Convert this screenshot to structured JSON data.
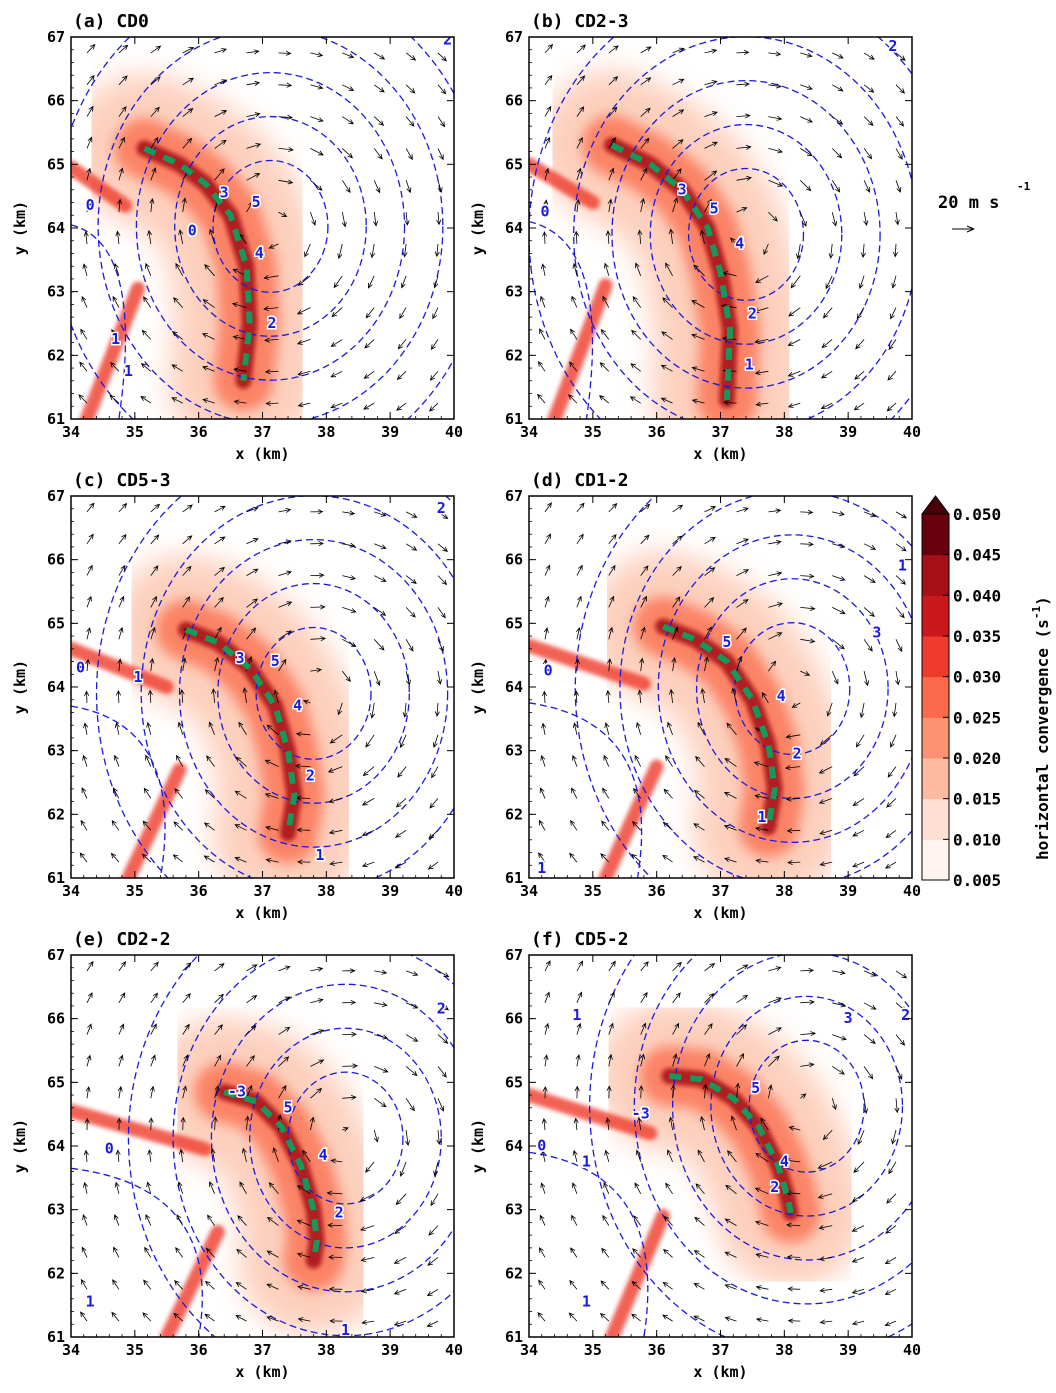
{
  "figure": {
    "reference_vector": {
      "label": "20 m s",
      "exponent": "-1"
    },
    "colorbar": {
      "label": "horizontal convergence (s",
      "label_exponent": "-1",
      "label_close": ")",
      "ticks": [
        "0.005",
        "0.010",
        "0.015",
        "0.020",
        "0.025",
        "0.030",
        "0.035",
        "0.040",
        "0.045",
        "0.050"
      ],
      "colors": [
        "#fff5f0",
        "#fee0d2",
        "#fcbba1",
        "#fc9272",
        "#fb6a4a",
        "#ef3b2c",
        "#cb181d",
        "#a50f15",
        "#67000d"
      ],
      "extend": "max"
    },
    "colors": {
      "contour": "#1a1adf",
      "front": "#16985a",
      "arrow": "#000000"
    }
  },
  "chart_data": [
    {
      "type": "heatmap",
      "title": "(a) CD0",
      "xlabel": "x (km)",
      "ylabel": "y (km)",
      "xlim": [
        34,
        40
      ],
      "ylim": [
        61,
        67
      ],
      "x_ticks": [
        "34",
        "35",
        "36",
        "37",
        "38",
        "39",
        "40"
      ],
      "y_ticks": [
        "61",
        "62",
        "63",
        "64",
        "65",
        "66",
        "67"
      ],
      "front_line": [
        [
          35.15,
          65.25
        ],
        [
          35.7,
          65.0
        ],
        [
          36.1,
          64.7
        ],
        [
          36.5,
          64.2
        ],
        [
          36.75,
          63.4
        ],
        [
          36.8,
          62.5
        ],
        [
          36.7,
          61.6
        ]
      ],
      "contour_labels": [
        {
          "text": "0",
          "x": 34.3,
          "y": 64.35
        },
        {
          "text": "0",
          "x": 35.9,
          "y": 63.95
        },
        {
          "text": "1",
          "x": 34.7,
          "y": 62.25
        },
        {
          "text": "1",
          "x": 34.9,
          "y": 61.75
        },
        {
          "text": "3",
          "x": 36.4,
          "y": 64.55
        },
        {
          "text": "5",
          "x": 36.9,
          "y": 64.4
        },
        {
          "text": "4",
          "x": 36.95,
          "y": 63.6
        },
        {
          "text": "2",
          "x": 37.15,
          "y": 62.5
        },
        {
          "text": "2",
          "x": 39.9,
          "y": 66.95
        }
      ]
    },
    {
      "type": "heatmap",
      "title": "(b) CD2-3",
      "xlabel": "x (km)",
      "ylabel": "y (km)",
      "xlim": [
        34,
        40
      ],
      "ylim": [
        61,
        67
      ],
      "x_ticks": [
        "34",
        "35",
        "36",
        "37",
        "38",
        "39",
        "40"
      ],
      "y_ticks": [
        "61",
        "62",
        "63",
        "64",
        "65",
        "66",
        "67"
      ],
      "front_line": [
        [
          35.3,
          65.3
        ],
        [
          35.9,
          65.0
        ],
        [
          36.4,
          64.6
        ],
        [
          36.8,
          64.0
        ],
        [
          37.0,
          63.3
        ],
        [
          37.15,
          62.4
        ],
        [
          37.1,
          61.3
        ]
      ],
      "contour_labels": [
        {
          "text": "0",
          "x": 34.25,
          "y": 64.25
        },
        {
          "text": "3",
          "x": 36.4,
          "y": 64.6
        },
        {
          "text": "5",
          "x": 36.9,
          "y": 64.3
        },
        {
          "text": "4",
          "x": 37.3,
          "y": 63.75
        },
        {
          "text": "2",
          "x": 37.5,
          "y": 62.65
        },
        {
          "text": "1",
          "x": 37.45,
          "y": 61.85
        },
        {
          "text": "2",
          "x": 39.7,
          "y": 66.85
        }
      ]
    },
    {
      "type": "heatmap",
      "title": "(c) CD5-3",
      "xlabel": "x (km)",
      "ylabel": "y (km)",
      "xlim": [
        34,
        40
      ],
      "ylim": [
        61,
        67
      ],
      "x_ticks": [
        "34",
        "35",
        "36",
        "37",
        "38",
        "39",
        "40"
      ],
      "y_ticks": [
        "61",
        "62",
        "63",
        "64",
        "65",
        "66",
        "67"
      ],
      "front_line": [
        [
          35.8,
          64.9
        ],
        [
          36.3,
          64.7
        ],
        [
          36.8,
          64.3
        ],
        [
          37.2,
          63.7
        ],
        [
          37.4,
          63.0
        ],
        [
          37.5,
          62.3
        ],
        [
          37.4,
          61.7
        ]
      ],
      "contour_labels": [
        {
          "text": "0",
          "x": 34.15,
          "y": 64.3
        },
        {
          "text": "1",
          "x": 35.05,
          "y": 64.15
        },
        {
          "text": "3",
          "x": 36.65,
          "y": 64.45
        },
        {
          "text": "5",
          "x": 37.2,
          "y": 64.4
        },
        {
          "text": "4",
          "x": 37.55,
          "y": 63.7
        },
        {
          "text": "2",
          "x": 37.75,
          "y": 62.6
        },
        {
          "text": "1",
          "x": 37.9,
          "y": 61.35
        },
        {
          "text": "2",
          "x": 39.8,
          "y": 66.8
        }
      ]
    },
    {
      "type": "heatmap",
      "title": "(d) CD1-2",
      "xlabel": "x (km)",
      "ylabel": "y (km)",
      "xlim": [
        34,
        40
      ],
      "ylim": [
        61,
        67
      ],
      "x_ticks": [
        "34",
        "35",
        "36",
        "37",
        "38",
        "39",
        "40"
      ],
      "y_ticks": [
        "61",
        "62",
        "63",
        "64",
        "65",
        "66",
        "67"
      ],
      "front_line": [
        [
          36.1,
          64.95
        ],
        [
          36.6,
          64.75
        ],
        [
          37.1,
          64.4
        ],
        [
          37.5,
          63.8
        ],
        [
          37.75,
          63.1
        ],
        [
          37.85,
          62.4
        ],
        [
          37.75,
          61.8
        ]
      ],
      "contour_labels": [
        {
          "text": "0",
          "x": 34.3,
          "y": 64.25
        },
        {
          "text": "5",
          "x": 37.1,
          "y": 64.7
        },
        {
          "text": "4",
          "x": 37.95,
          "y": 63.85
        },
        {
          "text": "2",
          "x": 38.2,
          "y": 62.95
        },
        {
          "text": "1",
          "x": 37.65,
          "y": 61.95
        },
        {
          "text": "3",
          "x": 39.45,
          "y": 64.85
        },
        {
          "text": "1",
          "x": 39.85,
          "y": 65.9
        },
        {
          "text": "1",
          "x": 34.2,
          "y": 61.15
        }
      ]
    },
    {
      "type": "heatmap",
      "title": "(e) CD2-2",
      "xlabel": "x (km)",
      "ylabel": "y (km)",
      "xlim": [
        34,
        40
      ],
      "ylim": [
        61,
        67
      ],
      "x_ticks": [
        "34",
        "35",
        "36",
        "37",
        "38",
        "39",
        "40"
      ],
      "y_ticks": [
        "61",
        "62",
        "63",
        "64",
        "65",
        "66",
        "67"
      ],
      "front_line": [
        [
          36.4,
          64.85
        ],
        [
          36.9,
          64.7
        ],
        [
          37.3,
          64.3
        ],
        [
          37.6,
          63.7
        ],
        [
          37.8,
          63.0
        ],
        [
          37.85,
          62.5
        ],
        [
          37.8,
          62.2
        ]
      ],
      "contour_labels": [
        {
          "text": "0",
          "x": 34.6,
          "y": 63.95
        },
        {
          "text": "-3",
          "x": 36.6,
          "y": 64.85
        },
        {
          "text": "5",
          "x": 37.4,
          "y": 64.6
        },
        {
          "text": "4",
          "x": 37.95,
          "y": 63.85
        },
        {
          "text": "2",
          "x": 38.2,
          "y": 62.95
        },
        {
          "text": "1",
          "x": 38.3,
          "y": 61.1
        },
        {
          "text": "2",
          "x": 39.8,
          "y": 66.15
        },
        {
          "text": "1",
          "x": 34.3,
          "y": 61.55
        }
      ]
    },
    {
      "type": "heatmap",
      "title": "(f) CD5-2",
      "xlabel": "x (km)",
      "ylabel": "y (km)",
      "xlim": [
        34,
        40
      ],
      "ylim": [
        61,
        67
      ],
      "x_ticks": [
        "34",
        "35",
        "36",
        "37",
        "38",
        "39",
        "40"
      ],
      "y_ticks": [
        "61",
        "62",
        "63",
        "64",
        "65",
        "66",
        "67"
      ],
      "front_line": [
        [
          36.2,
          65.1
        ],
        [
          36.7,
          65.05
        ],
        [
          37.2,
          64.75
        ],
        [
          37.6,
          64.3
        ],
        [
          37.9,
          63.7
        ],
        [
          38.05,
          63.2
        ],
        [
          38.1,
          62.95
        ]
      ],
      "contour_labels": [
        {
          "text": "0",
          "x": 34.2,
          "y": 64.0
        },
        {
          "text": "-3",
          "x": 35.75,
          "y": 64.5
        },
        {
          "text": "1",
          "x": 34.9,
          "y": 63.75
        },
        {
          "text": "1",
          "x": 34.75,
          "y": 66.05
        },
        {
          "text": "5",
          "x": 37.55,
          "y": 64.9
        },
        {
          "text": "4",
          "x": 38.0,
          "y": 63.75
        },
        {
          "text": "2",
          "x": 37.85,
          "y": 63.35
        },
        {
          "text": "3",
          "x": 39.0,
          "y": 66.0
        },
        {
          "text": "2",
          "x": 39.9,
          "y": 66.05
        },
        {
          "text": "1",
          "x": 34.9,
          "y": 61.55
        }
      ]
    }
  ]
}
